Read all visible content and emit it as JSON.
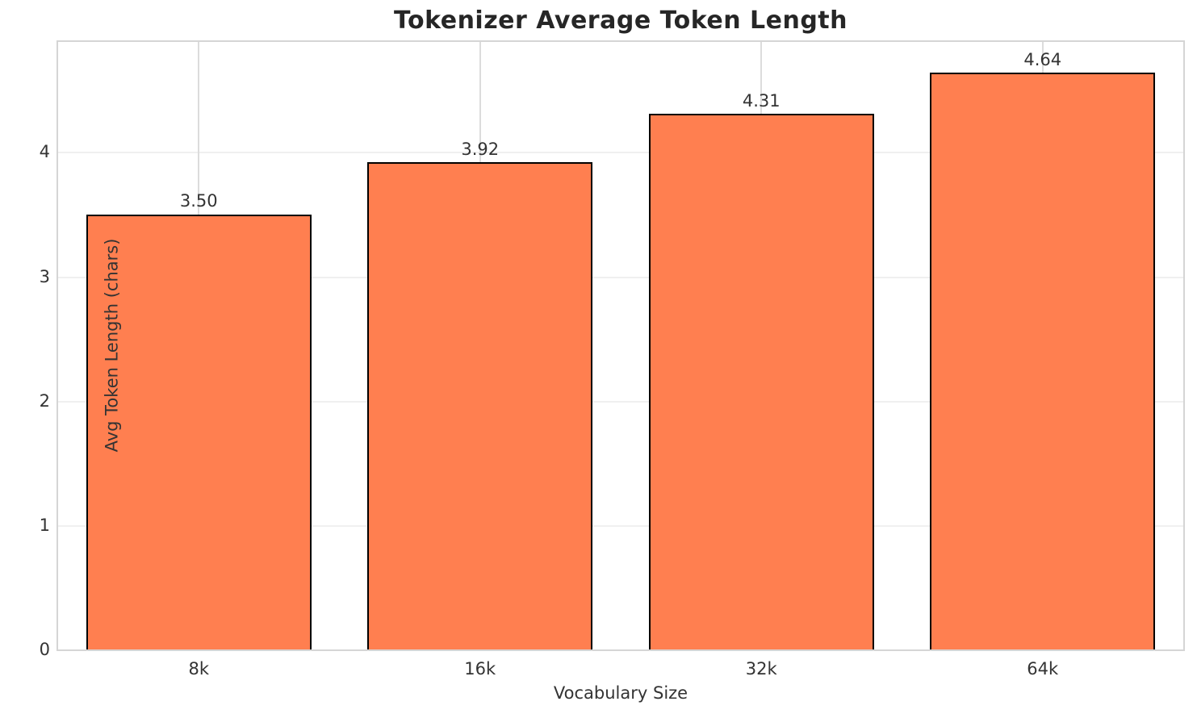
{
  "chart_data": {
    "type": "bar",
    "title": "Tokenizer Average Token Length",
    "xlabel": "Vocabulary Size",
    "ylabel": "Avg Token Length (chars)",
    "categories": [
      "8k",
      "16k",
      "32k",
      "64k"
    ],
    "values": [
      3.5,
      3.92,
      4.31,
      4.64
    ],
    "value_labels": [
      "3.50",
      "3.92",
      "4.31",
      "4.64"
    ],
    "yticks": [
      0,
      1,
      2,
      3,
      4
    ],
    "ytick_labels": [
      "0",
      "1",
      "2",
      "3",
      "4"
    ],
    "ylim": [
      0,
      4.885
    ],
    "grid": true,
    "legend": "none",
    "bar_color": "#FF7F50",
    "bar_edge_color": "#000000",
    "grid_color_h": "#f0f0f0",
    "grid_color_v": "#dcdcdc",
    "spine_color": "#d5d5d5",
    "title_color": "#262626",
    "text_color": "#333333"
  }
}
